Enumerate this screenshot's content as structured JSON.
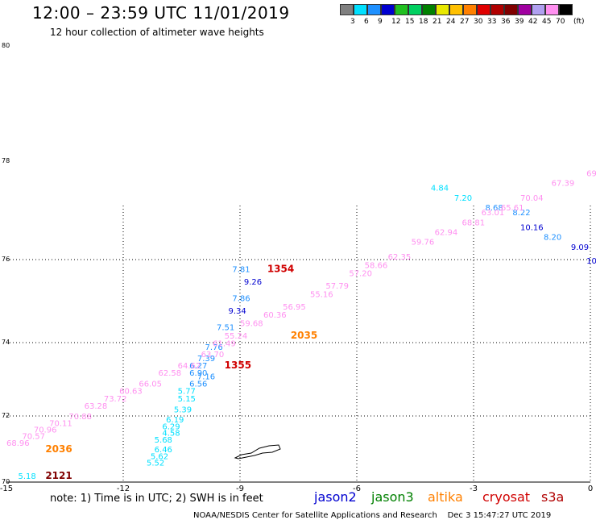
{
  "title": "12:00 – 23:59 UTC 11/01/2019",
  "subtitle": "12 hour collection of altimeter wave heights",
  "legend": {
    "unit": "(ft)",
    "bins": [
      {
        "label": "3",
        "color": "#808080"
      },
      {
        "label": "6",
        "color": "#00e0ff"
      },
      {
        "label": "9",
        "color": "#1e90ff"
      },
      {
        "label": "12",
        "color": "#0000d0"
      },
      {
        "label": "15",
        "color": "#20c020"
      },
      {
        "label": "18",
        "color": "#00d060"
      },
      {
        "label": "21",
        "color": "#008000"
      },
      {
        "label": "24",
        "color": "#e8e800"
      },
      {
        "label": "27",
        "color": "#ffc000"
      },
      {
        "label": "30",
        "color": "#ff8000"
      },
      {
        "label": "33",
        "color": "#e00000"
      },
      {
        "label": "36",
        "color": "#b00000"
      },
      {
        "label": "39",
        "color": "#800000"
      },
      {
        "label": "42",
        "color": "#a000a0"
      },
      {
        "label": "45",
        "color": "#b0a0f0"
      },
      {
        "label": "70",
        "color": "#ff90f0"
      },
      {
        "label": "",
        "color": "#000000"
      }
    ]
  },
  "y_axis": {
    "ticks": [
      {
        "label": "80",
        "lat": 80
      },
      {
        "label": "78",
        "lat": 78
      },
      {
        "label": "76",
        "lat": 76
      },
      {
        "label": "74",
        "lat": 74
      },
      {
        "label": "72",
        "lat": 72
      },
      {
        "label": "70",
        "lat": 70
      }
    ]
  },
  "x_axis": {
    "ticks": [
      {
        "label": "-15",
        "lon": -15
      },
      {
        "label": "-12",
        "lon": -12
      },
      {
        "label": "-9",
        "lon": -9
      },
      {
        "label": "-6",
        "lon": -6
      },
      {
        "label": "-3",
        "lon": -3
      },
      {
        "label": "0",
        "lon": 0
      }
    ]
  },
  "chart_data": {
    "type": "scatter",
    "xlim": [
      -15,
      0
    ],
    "ylim": [
      70,
      80
    ],
    "grid": true,
    "series": [
      {
        "name": "jason2",
        "color": "#0000d0",
        "points": [
          {
            "lon": -8.9,
            "lat": 75.4,
            "v": "9.26",
            "c": "#0000d0"
          },
          {
            "lon": -9.3,
            "lat": 74.7,
            "v": "9.34",
            "c": "#0000d0"
          },
          {
            "lon": -1.8,
            "lat": 76.6,
            "v": "10.16",
            "c": "#0000d0"
          },
          {
            "lon": -0.5,
            "lat": 76.2,
            "v": "9.09",
            "c": "#0000d0"
          },
          {
            "lon": -0.1,
            "lat": 75.9,
            "v": "10",
            "c": "#0000d0"
          },
          {
            "lon": -9.2,
            "lat": 75.7,
            "v": "7.81",
            "c": "#1e90ff"
          },
          {
            "lon": -9.2,
            "lat": 75.0,
            "v": "7.86",
            "c": "#1e90ff"
          },
          {
            "lon": -9.6,
            "lat": 74.3,
            "v": "7.51",
            "c": "#1e90ff"
          },
          {
            "lon": -9.9,
            "lat": 73.8,
            "v": "7.76",
            "c": "#1e90ff"
          },
          {
            "lon": -10.1,
            "lat": 73.5,
            "v": "7.39",
            "c": "#1e90ff"
          },
          {
            "lon": -10.1,
            "lat": 73.0,
            "v": "7.16",
            "c": "#1e90ff"
          },
          {
            "lon": -2.7,
            "lat": 77.0,
            "v": "8.68",
            "c": "#1e90ff"
          },
          {
            "lon": -2.0,
            "lat": 76.9,
            "v": "8.22",
            "c": "#1e90ff"
          },
          {
            "lon": -1.2,
            "lat": 76.4,
            "v": "8.20",
            "c": "#1e90ff"
          },
          {
            "lon": -10.3,
            "lat": 73.3,
            "v": "6.27",
            "c": "#1e90ff"
          },
          {
            "lon": -10.3,
            "lat": 73.1,
            "v": "6.90",
            "c": "#1e90ff"
          },
          {
            "lon": -10.3,
            "lat": 72.8,
            "v": "6.56",
            "c": "#1e90ff"
          }
        ]
      },
      {
        "name": "altika-cyan",
        "color": "#00e0ff",
        "points": [
          {
            "lon": -10.6,
            "lat": 72.6,
            "v": "5.77",
            "c": "#00e0ff"
          },
          {
            "lon": -10.6,
            "lat": 72.4,
            "v": "5.15",
            "c": "#00e0ff"
          },
          {
            "lon": -10.7,
            "lat": 72.1,
            "v": "5.39",
            "c": "#00e0ff"
          },
          {
            "lon": -10.9,
            "lat": 71.8,
            "v": "6.19",
            "c": "#00e0ff"
          },
          {
            "lon": -11.0,
            "lat": 71.6,
            "v": "6.29",
            "c": "#00e0ff"
          },
          {
            "lon": -11.0,
            "lat": 71.4,
            "v": "4.58",
            "c": "#00e0ff"
          },
          {
            "lon": -11.2,
            "lat": 71.2,
            "v": "5.68",
            "c": "#00e0ff"
          },
          {
            "lon": -11.2,
            "lat": 70.9,
            "v": "6.46",
            "c": "#00e0ff"
          },
          {
            "lon": -11.3,
            "lat": 70.7,
            "v": "5.62",
            "c": "#00e0ff"
          },
          {
            "lon": -11.4,
            "lat": 70.5,
            "v": "5.52",
            "c": "#00e0ff"
          },
          {
            "lon": -4.1,
            "lat": 77.4,
            "v": "4.84",
            "c": "#00e0ff"
          },
          {
            "lon": -3.5,
            "lat": 77.2,
            "v": "7.20",
            "c": "#00e0ff"
          },
          {
            "lon": -14.7,
            "lat": 70.1,
            "v": "5.18",
            "c": "#00e0ff"
          }
        ]
      },
      {
        "name": "s3a",
        "color": "#ff90f0",
        "points": [
          {
            "lon": -0.1,
            "lat": 77.7,
            "v": "69",
            "c": "#ff90f0"
          },
          {
            "lon": -1.0,
            "lat": 77.5,
            "v": "67.39",
            "c": "#ff90f0"
          },
          {
            "lon": -1.8,
            "lat": 77.2,
            "v": "70.04",
            "c": "#ff90f0"
          },
          {
            "lon": -2.3,
            "lat": 77.0,
            "v": "65.61",
            "c": "#ff90f0"
          },
          {
            "lon": -2.8,
            "lat": 76.9,
            "v": "63.01",
            "c": "#ff90f0"
          },
          {
            "lon": -3.3,
            "lat": 76.7,
            "v": "68.81",
            "c": "#ff90f0"
          },
          {
            "lon": -4.0,
            "lat": 76.5,
            "v": "62.94",
            "c": "#ff90f0"
          },
          {
            "lon": -4.6,
            "lat": 76.3,
            "v": "59.76",
            "c": "#ff90f0"
          },
          {
            "lon": -5.2,
            "lat": 76.0,
            "v": "62.35",
            "c": "#ff90f0"
          },
          {
            "lon": -5.8,
            "lat": 75.8,
            "v": "58.66",
            "c": "#ff90f0"
          },
          {
            "lon": -6.2,
            "lat": 75.6,
            "v": "57.20",
            "c": "#ff90f0"
          },
          {
            "lon": -6.8,
            "lat": 75.3,
            "v": "57.79",
            "c": "#ff90f0"
          },
          {
            "lon": -7.2,
            "lat": 75.1,
            "v": "55.16",
            "c": "#ff90f0"
          },
          {
            "lon": -7.9,
            "lat": 74.8,
            "v": "56.95",
            "c": "#ff90f0"
          },
          {
            "lon": -8.4,
            "lat": 74.6,
            "v": "60.36",
            "c": "#ff90f0"
          },
          {
            "lon": -9.0,
            "lat": 74.4,
            "v": "59.68",
            "c": "#ff90f0"
          },
          {
            "lon": -9.4,
            "lat": 74.1,
            "v": "55.24",
            "c": "#ff90f0"
          },
          {
            "lon": -9.7,
            "lat": 73.9,
            "v": "61.49",
            "c": "#ff90f0"
          },
          {
            "lon": -10.0,
            "lat": 73.6,
            "v": "63.70",
            "c": "#ff90f0"
          },
          {
            "lon": -10.6,
            "lat": 73.3,
            "v": "64.62",
            "c": "#ff90f0"
          },
          {
            "lon": -11.1,
            "lat": 73.1,
            "v": "62.58",
            "c": "#ff90f0"
          },
          {
            "lon": -11.6,
            "lat": 72.8,
            "v": "66.05",
            "c": "#ff90f0"
          },
          {
            "lon": -12.1,
            "lat": 72.6,
            "v": "60.63",
            "c": "#ff90f0"
          },
          {
            "lon": -12.5,
            "lat": 72.4,
            "v": "73.72",
            "c": "#ff90f0"
          },
          {
            "lon": -13.0,
            "lat": 72.2,
            "v": "63.28",
            "c": "#ff90f0"
          },
          {
            "lon": -13.4,
            "lat": 71.9,
            "v": "70.88",
            "c": "#ff90f0"
          },
          {
            "lon": -13.9,
            "lat": 71.7,
            "v": "70.11",
            "c": "#ff90f0"
          },
          {
            "lon": -14.3,
            "lat": 71.5,
            "v": "70.96",
            "c": "#ff90f0"
          },
          {
            "lon": -14.6,
            "lat": 71.3,
            "v": "70.57",
            "c": "#ff90f0"
          },
          {
            "lon": -15.0,
            "lat": 71.1,
            "v": "68.96",
            "c": "#ff90f0"
          }
        ]
      }
    ],
    "time_labels": [
      {
        "lon": -8.3,
        "lat": 75.7,
        "v": "1354",
        "c": "#d00000"
      },
      {
        "lon": -9.4,
        "lat": 73.3,
        "v": "1355",
        "c": "#d00000"
      },
      {
        "lon": -7.7,
        "lat": 74.1,
        "v": "2035",
        "c": "#ff8000"
      },
      {
        "lon": -14.0,
        "lat": 70.9,
        "v": "2036",
        "c": "#ff8000"
      },
      {
        "lon": -14.0,
        "lat": 70.1,
        "v": "2121",
        "c": "#800000"
      }
    ]
  },
  "note": "note:  1) Time is in UTC;  2) SWH is in feet",
  "missions": [
    {
      "label": "jason2",
      "color": "#0000d0"
    },
    {
      "label": "jason3",
      "color": "#008000"
    },
    {
      "label": "altika",
      "color": "#ff8000"
    },
    {
      "label": "cryosat",
      "color": "#d00000"
    },
    {
      "label": "s3a",
      "color": "#b00000"
    }
  ],
  "credit": "NOAA/NESDIS Center for Satellite Applications and Research",
  "timestamp": "Dec  3 15:47:27 UTC 2019"
}
